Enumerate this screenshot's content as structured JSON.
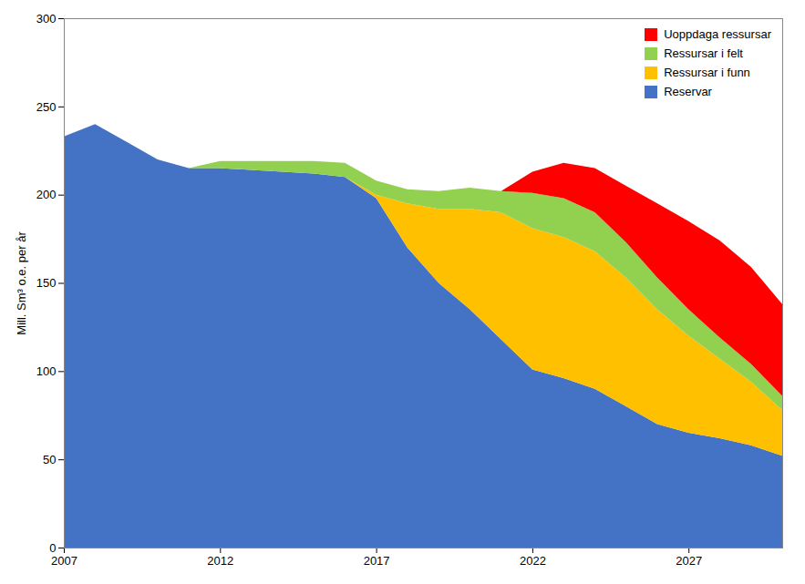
{
  "chart_data": {
    "type": "area",
    "stacked": true,
    "x": [
      2007,
      2008,
      2009,
      2010,
      2011,
      2012,
      2013,
      2014,
      2015,
      2016,
      2017,
      2018,
      2019,
      2020,
      2021,
      2022,
      2023,
      2024,
      2025,
      2026,
      2027,
      2028,
      2029,
      2030
    ],
    "series": [
      {
        "name": "Reservar",
        "color": "#4472C4",
        "values": [
          233,
          240,
          230,
          220,
          215,
          215,
          214,
          213,
          212,
          210,
          198,
          170,
          150,
          135,
          118,
          101,
          96,
          90,
          80,
          70,
          65,
          62,
          58,
          52
        ]
      },
      {
        "name": "Ressursar i funn",
        "color": "#FFC000",
        "values": [
          0,
          0,
          0,
          0,
          0,
          0,
          0,
          0,
          0,
          0,
          2,
          25,
          42,
          57,
          72,
          80,
          80,
          78,
          73,
          65,
          55,
          45,
          36,
          26
        ]
      },
      {
        "name": "Ressursar i felt",
        "color": "#92D050",
        "values": [
          0,
          0,
          0,
          0,
          0,
          4,
          5,
          6,
          7,
          8,
          8,
          8,
          10,
          12,
          12,
          20,
          22,
          22,
          20,
          18,
          15,
          12,
          10,
          8
        ]
      },
      {
        "name": "Uoppdaga ressursar",
        "color": "#FF0000",
        "values": [
          0,
          0,
          0,
          0,
          0,
          0,
          0,
          0,
          0,
          0,
          0,
          0,
          0,
          0,
          0,
          12,
          20,
          25,
          32,
          42,
          50,
          55,
          55,
          52
        ]
      }
    ],
    "ylabel": "Mill. Sm³ o.e. per år",
    "xlim": [
      2007,
      2030
    ],
    "xticks": [
      2007,
      2012,
      2017,
      2022,
      2027
    ],
    "ylim": [
      0,
      300
    ],
    "yticks": [
      0,
      50,
      100,
      150,
      200,
      250,
      300
    ],
    "grid": false,
    "legend": "upper right"
  }
}
